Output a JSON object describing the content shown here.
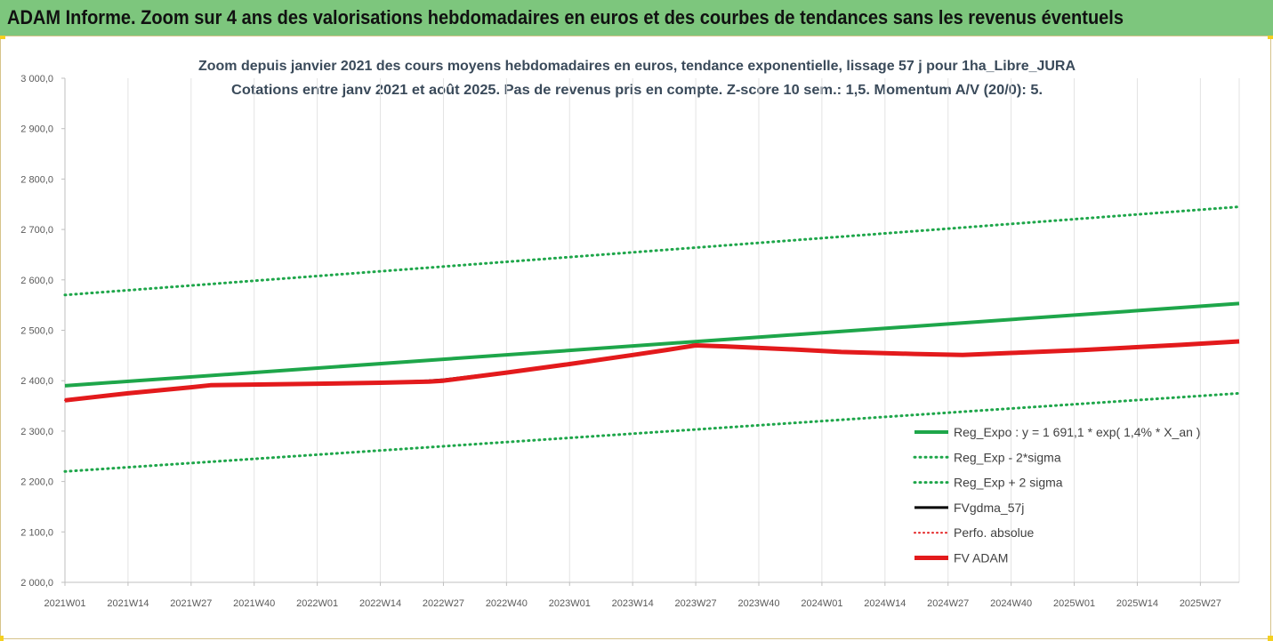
{
  "header": {
    "title": "ADAM Informe. Zoom sur 4 ans des valorisations hebdomadaires en euros et des courbes de tendances sans les revenus éventuels"
  },
  "colors": {
    "header_bg": "#7dc67d",
    "green": "#1ea64a",
    "black": "#000000",
    "red": "#e31a1c"
  },
  "chart_data": {
    "type": "line",
    "title_lines": [
      "Zoom depuis janvier 2021 des cours moyens hebdomadaires en euros, tendance exponentielle, lissage 57 j pour 1ha_Libre_JURA",
      "Cotations entre janv 2021 et août 2025.  Pas de revenus pris en compte. Z-score 10 sem.: 1,5. Momentum A/V (20/0): 5."
    ],
    "ylim": [
      2000,
      3000
    ],
    "y_ticks": [
      "3 000,0",
      "2 900,0",
      "2 800,0",
      "2 700,0",
      "2 600,0",
      "2 500,0",
      "2 400,0",
      "2 300,0",
      "2 200,0",
      "2 100,0",
      "2 000,0"
    ],
    "y_tick_values": [
      3000,
      2900,
      2800,
      2700,
      2600,
      2500,
      2400,
      2300,
      2200,
      2100,
      2000
    ],
    "x_ticks": [
      "2021W01",
      "2021W14",
      "2021W27",
      "2021W40",
      "2022W01",
      "2022W14",
      "2022W27",
      "2022W40",
      "2023W01",
      "2023W14",
      "2023W27",
      "2023W40",
      "2024W01",
      "2024W14",
      "2024W27",
      "2024W40",
      "2025W01",
      "2025W14",
      "2025W27"
    ],
    "x_tick_weeks": [
      0,
      13,
      26,
      39,
      52,
      65,
      78,
      91,
      104,
      117,
      130,
      143,
      156,
      169,
      182,
      195,
      208,
      221,
      234
    ],
    "n_weeks": 243,
    "grid": "vertical",
    "legend_position": "bottom-right",
    "series": [
      {
        "name": "Reg_Expo : y = 1 691,1 * exp( 1,4% *  X_an )",
        "style": "solid-green",
        "x": [
          0,
          242
        ],
        "y": [
          2390,
          2553
        ]
      },
      {
        "name": "Reg_Exp - 2*sigma",
        "style": "dotted-green",
        "x": [
          0,
          242
        ],
        "y": [
          2220,
          2375
        ]
      },
      {
        "name": "Reg_Exp + 2 sigma",
        "style": "dotted-green",
        "x": [
          0,
          242
        ],
        "y": [
          2570,
          2745
        ]
      },
      {
        "name": "FVgdma_57j",
        "style": "solid-black",
        "x": [
          0,
          13,
          26,
          30,
          52,
          65,
          75,
          78,
          91,
          104,
          117,
          124,
          130,
          136,
          150,
          160,
          175,
          185,
          195,
          210,
          230,
          242
        ],
        "y": [
          2362,
          2376,
          2388,
          2391,
          2394,
          2396,
          2400,
          2402,
          2417,
          2434,
          2452,
          2462,
          2470,
          2469,
          2463,
          2458,
          2454,
          2452,
          2455,
          2462,
          2472,
          2478
        ]
      },
      {
        "name": "Perfo. absolue",
        "style": "dotted-red",
        "x": [
          0,
          13,
          26,
          30,
          52,
          65,
          75,
          78,
          91,
          104,
          117,
          124,
          130,
          136,
          150,
          160,
          175,
          185,
          195,
          210,
          230,
          242
        ],
        "y": [
          2361,
          2375,
          2387,
          2391,
          2394,
          2396,
          2398,
          2400,
          2416,
          2433,
          2451,
          2461,
          2470,
          2468,
          2462,
          2457,
          2453,
          2451,
          2455,
          2461,
          2471,
          2478
        ]
      },
      {
        "name": "FV ADAM",
        "style": "thick-red",
        "x": [
          0,
          13,
          26,
          30,
          52,
          65,
          75,
          78,
          91,
          104,
          117,
          124,
          130,
          136,
          150,
          160,
          175,
          185,
          195,
          210,
          230,
          242
        ],
        "y": [
          2361,
          2375,
          2387,
          2391,
          2394,
          2396,
          2398,
          2400,
          2416,
          2433,
          2451,
          2461,
          2470,
          2468,
          2462,
          2457,
          2453,
          2451,
          2455,
          2461,
          2471,
          2478
        ]
      }
    ]
  }
}
